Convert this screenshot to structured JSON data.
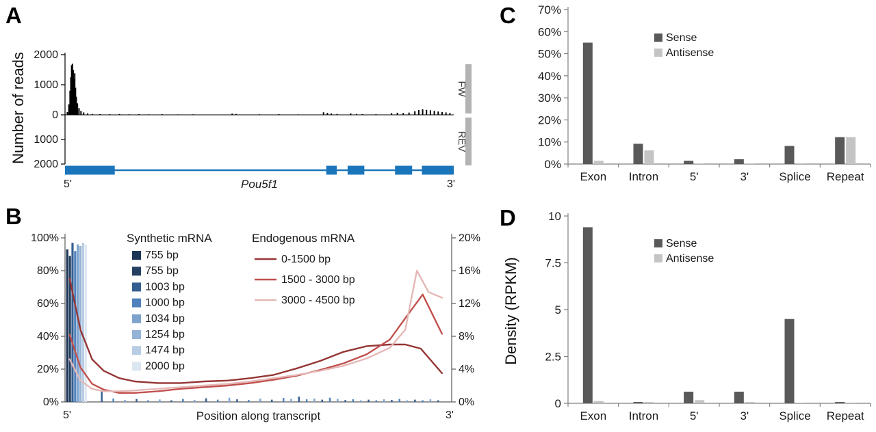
{
  "figure": {
    "background": "#ffffff"
  },
  "chart_data": [
    {
      "id": "panel-a",
      "panel_label": "A",
      "type": "area",
      "ylabel": "Number of reads",
      "ymax_reads": 2000,
      "yticks_fw": [
        "2000",
        "1000",
        "0"
      ],
      "ytick_values_fw": [
        2000,
        1000,
        0
      ],
      "yticks_rev": [
        "1000",
        "2000"
      ],
      "ytick_values_rev": [
        1000,
        2000
      ],
      "strands": {
        "fw": "FW",
        "rev": "REV"
      },
      "gene_model": {
        "name": "Pou5f1",
        "start_label": "5'",
        "end_label": "3'",
        "exons": [
          [
            0.0,
            0.128
          ],
          [
            0.672,
            0.699
          ],
          [
            0.727,
            0.77
          ],
          [
            0.849,
            0.893
          ],
          [
            0.918,
            1.0
          ]
        ]
      },
      "coverage_fw": [
        [
          0.006,
          90
        ],
        [
          0.01,
          350
        ],
        [
          0.013,
          800
        ],
        [
          0.015,
          1250
        ],
        [
          0.017,
          1650
        ],
        [
          0.019,
          1700
        ],
        [
          0.021,
          1500
        ],
        [
          0.023,
          1200
        ],
        [
          0.025,
          1380
        ],
        [
          0.027,
          900
        ],
        [
          0.029,
          600
        ],
        [
          0.032,
          380
        ],
        [
          0.036,
          220
        ],
        [
          0.041,
          130
        ],
        [
          0.048,
          80
        ],
        [
          0.058,
          45
        ],
        [
          0.07,
          30
        ],
        [
          0.09,
          25
        ],
        [
          0.115,
          20
        ],
        [
          0.14,
          28
        ],
        [
          0.165,
          18
        ],
        [
          0.19,
          22
        ],
        [
          0.215,
          16
        ],
        [
          0.25,
          20
        ],
        [
          0.29,
          15
        ],
        [
          0.33,
          18
        ],
        [
          0.43,
          40
        ],
        [
          0.44,
          30
        ],
        [
          0.5,
          18
        ],
        [
          0.55,
          22
        ],
        [
          0.6,
          15
        ],
        [
          0.665,
          85
        ],
        [
          0.675,
          65
        ],
        [
          0.685,
          45
        ],
        [
          0.7,
          30
        ],
        [
          0.735,
          45
        ],
        [
          0.75,
          30
        ],
        [
          0.765,
          25
        ],
        [
          0.8,
          20
        ],
        [
          0.84,
          55
        ],
        [
          0.855,
          70
        ],
        [
          0.87,
          60
        ],
        [
          0.885,
          75
        ],
        [
          0.9,
          120
        ],
        [
          0.91,
          160
        ],
        [
          0.92,
          185
        ],
        [
          0.93,
          165
        ],
        [
          0.94,
          150
        ],
        [
          0.95,
          130
        ],
        [
          0.96,
          110
        ],
        [
          0.97,
          95
        ],
        [
          0.98,
          80
        ],
        [
          0.99,
          60
        ]
      ],
      "coverage_rev": [],
      "colors": {
        "reads": "#000000",
        "gene": "#1b75bb",
        "strand_bar": "#b3b3b3"
      }
    },
    {
      "id": "panel-b",
      "panel_label": "B",
      "type": "bar+line",
      "xlabel": "Position along transcript",
      "x_start_label": "5'",
      "x_end_label": "3'",
      "left_axis": {
        "ticks": [
          "0%",
          "20%",
          "40%",
          "60%",
          "80%",
          "100%"
        ],
        "max": 100
      },
      "right_axis": {
        "ticks": [
          "0%",
          "4%",
          "8%",
          "12%",
          "16%",
          "20%"
        ],
        "max": 20
      },
      "synthetic": {
        "legend_title": "Synthetic mRNA",
        "entries": [
          {
            "label": "755 bp",
            "color": "#1c3556"
          },
          {
            "label": "755 bp",
            "color": "#254061"
          },
          {
            "label": "1003 bp",
            "color": "#365f91"
          },
          {
            "label": "1000 bp",
            "color": "#4f81bd"
          },
          {
            "label": "1034 bp",
            "color": "#7da3cd"
          },
          {
            "label": "1254 bp",
            "color": "#95b3d7"
          },
          {
            "label": "1474 bp",
            "color": "#b8cce4"
          },
          {
            "label": "2000 bp",
            "color": "#dce6f1"
          }
        ],
        "cluster_bars": {
          "x_start": 0.003,
          "step": 0.0068,
          "heights_pct": [
            93,
            89,
            97,
            92,
            96,
            95,
            97,
            96
          ]
        },
        "scatter_bars": [
          [
            0.095,
            6.5
          ],
          [
            0.125,
            2.0
          ],
          [
            0.155,
            1.2
          ],
          [
            0.185,
            1.8
          ],
          [
            0.215,
            1.0
          ],
          [
            0.245,
            1.5
          ],
          [
            0.275,
            1.0
          ],
          [
            0.305,
            1.8
          ],
          [
            0.335,
            1.2
          ],
          [
            0.365,
            2.2
          ],
          [
            0.395,
            1.4
          ],
          [
            0.425,
            2.6
          ],
          [
            0.445,
            1.6
          ],
          [
            0.475,
            1.2
          ],
          [
            0.505,
            2.0
          ],
          [
            0.535,
            1.4
          ],
          [
            0.565,
            2.4
          ],
          [
            0.585,
            1.8
          ],
          [
            0.605,
            3.2
          ],
          [
            0.625,
            1.6
          ],
          [
            0.645,
            2.0
          ],
          [
            0.665,
            1.4
          ],
          [
            0.685,
            2.6
          ],
          [
            0.705,
            1.8
          ],
          [
            0.725,
            1.2
          ],
          [
            0.745,
            1.6
          ],
          [
            0.765,
            1.0
          ],
          [
            0.785,
            1.4
          ],
          [
            0.805,
            1.0
          ],
          [
            0.825,
            1.6
          ],
          [
            0.845,
            1.2
          ],
          [
            0.865,
            1.8
          ],
          [
            0.885,
            1.0
          ],
          [
            0.905,
            1.4
          ],
          [
            0.925,
            1.0
          ],
          [
            0.945,
            1.6
          ],
          [
            0.965,
            1.0
          ]
        ]
      },
      "endogenous": {
        "legend_title": "Endogenous mRNA",
        "series": [
          {
            "name": "0-1500 bp",
            "color": "#943634",
            "points": [
              [
                0.012,
                15.0
              ],
              [
                0.04,
                8.8
              ],
              [
                0.07,
                5.2
              ],
              [
                0.1,
                3.8
              ],
              [
                0.14,
                2.9
              ],
              [
                0.18,
                2.5
              ],
              [
                0.24,
                2.3
              ],
              [
                0.3,
                2.3
              ],
              [
                0.36,
                2.5
              ],
              [
                0.42,
                2.6
              ],
              [
                0.48,
                2.9
              ],
              [
                0.54,
                3.3
              ],
              [
                0.6,
                4.1
              ],
              [
                0.66,
                5.0
              ],
              [
                0.72,
                6.1
              ],
              [
                0.78,
                6.8
              ],
              [
                0.84,
                7.0
              ],
              [
                0.88,
                7.0
              ],
              [
                0.92,
                6.5
              ],
              [
                0.975,
                3.5
              ]
            ]
          },
          {
            "name": "1500 - 3000 bp",
            "color": "#c0504d",
            "points": [
              [
                0.012,
                8.2
              ],
              [
                0.04,
                4.2
              ],
              [
                0.07,
                2.2
              ],
              [
                0.1,
                1.5
              ],
              [
                0.14,
                1.1
              ],
              [
                0.18,
                1.1
              ],
              [
                0.24,
                1.3
              ],
              [
                0.3,
                1.6
              ],
              [
                0.36,
                1.8
              ],
              [
                0.42,
                2.0
              ],
              [
                0.48,
                2.3
              ],
              [
                0.54,
                2.7
              ],
              [
                0.6,
                3.2
              ],
              [
                0.66,
                3.9
              ],
              [
                0.72,
                4.7
              ],
              [
                0.78,
                5.8
              ],
              [
                0.84,
                7.6
              ],
              [
                0.88,
                10.2
              ],
              [
                0.925,
                13.1
              ],
              [
                0.975,
                8.3
              ]
            ]
          },
          {
            "name": "3000 - 4500 bp",
            "color": "#e5b8b7",
            "points": [
              [
                0.012,
                5.2
              ],
              [
                0.04,
                2.6
              ],
              [
                0.07,
                1.6
              ],
              [
                0.1,
                1.3
              ],
              [
                0.14,
                1.3
              ],
              [
                0.18,
                1.4
              ],
              [
                0.24,
                1.6
              ],
              [
                0.3,
                1.8
              ],
              [
                0.36,
                2.0
              ],
              [
                0.42,
                2.2
              ],
              [
                0.48,
                2.5
              ],
              [
                0.54,
                2.9
              ],
              [
                0.6,
                3.3
              ],
              [
                0.66,
                3.8
              ],
              [
                0.72,
                4.4
              ],
              [
                0.78,
                5.3
              ],
              [
                0.84,
                6.6
              ],
              [
                0.88,
                8.8
              ],
              [
                0.91,
                16.0
              ],
              [
                0.94,
                13.4
              ],
              [
                0.975,
                12.7
              ]
            ]
          }
        ]
      }
    },
    {
      "id": "panel-c",
      "panel_label": "C",
      "type": "bar",
      "categories": [
        "Exon",
        "Intron",
        "5'",
        "3'",
        "Splice",
        "Repeat"
      ],
      "yticks": [
        "0%",
        "10%",
        "20%",
        "30%",
        "40%",
        "50%",
        "60%",
        "70%"
      ],
      "ylim": [
        0,
        70
      ],
      "series": [
        {
          "name": "Sense",
          "color": "#595959",
          "values": [
            55,
            9.2,
            1.5,
            2.2,
            8.2,
            12.2
          ]
        },
        {
          "name": "Antisense",
          "color": "#c4c4c4",
          "values": [
            1.5,
            6.2,
            0.3,
            0.3,
            0.4,
            12.2
          ]
        }
      ]
    },
    {
      "id": "panel-d",
      "panel_label": "D",
      "type": "bar",
      "ylabel": "Density (RPKM)",
      "categories": [
        "Exon",
        "Intron",
        "5'",
        "3'",
        "Splice",
        "Repeat"
      ],
      "yticks": [
        "0",
        "2.5",
        "5",
        "7.5",
        "10"
      ],
      "ylim": [
        0,
        10
      ],
      "series": [
        {
          "name": "Sense",
          "color": "#595959",
          "values": [
            9.4,
            0.07,
            0.62,
            0.62,
            4.5,
            0.07
          ]
        },
        {
          "name": "Antisense",
          "color": "#c4c4c4",
          "values": [
            0.12,
            0.07,
            0.17,
            0.07,
            0.03,
            0.03
          ]
        }
      ]
    }
  ]
}
